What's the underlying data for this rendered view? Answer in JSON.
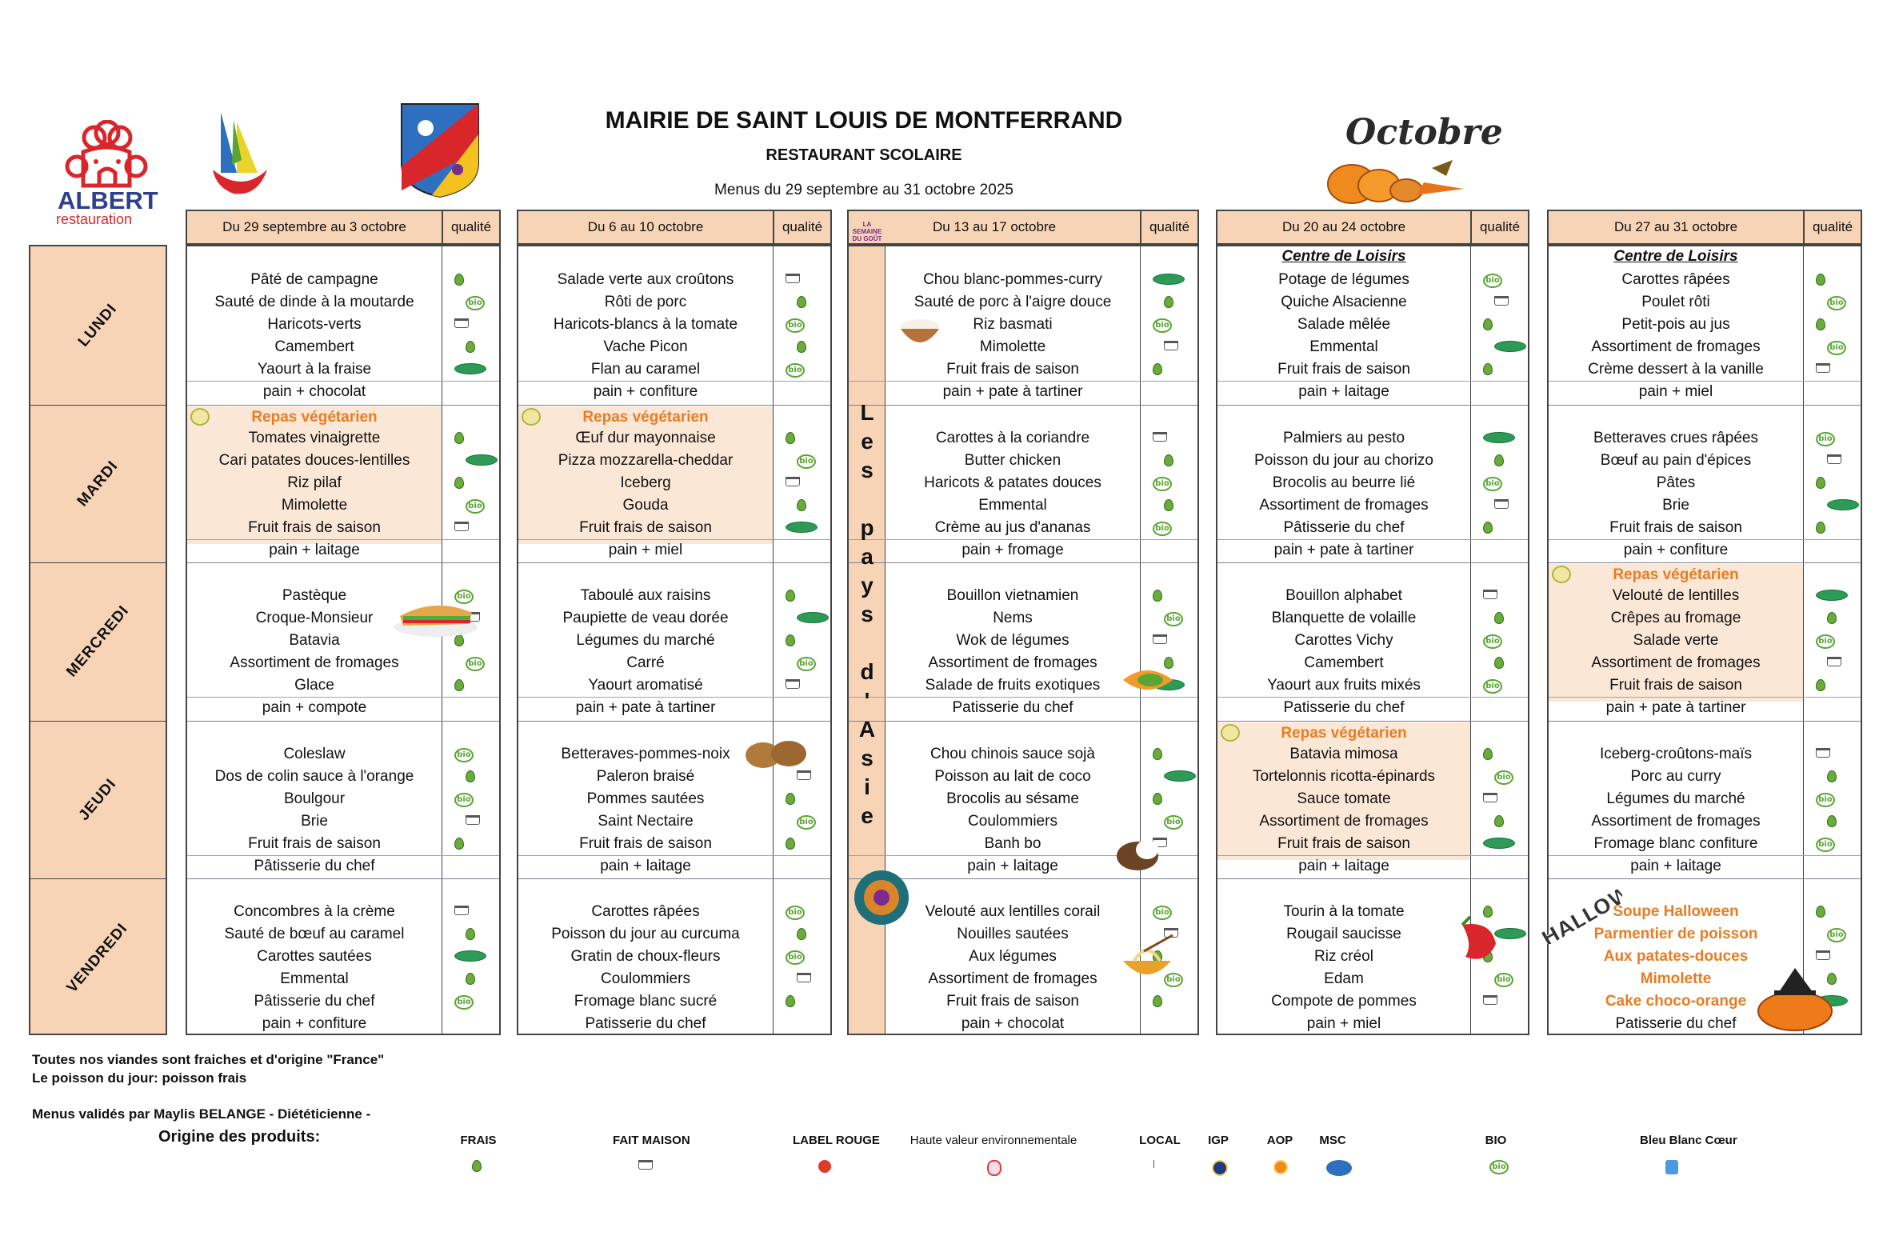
{
  "header": {
    "brand_name": "ALBERT",
    "brand_tagline": "restauration",
    "title": "MAIRIE DE SAINT LOUIS DE MONTFERRAND",
    "subtitle": "RESTAURANT SCOLAIRE",
    "period": "Menus du 29 septembre au 31 octobre 2025",
    "month_art": "Octobre"
  },
  "days": [
    "LUNDI",
    "MARDI",
    "MERCREDI",
    "JEUDI",
    "VENDREDI"
  ],
  "quality_label": "qualité",
  "weeks": [
    {
      "label": "Du 29 septembre au 3 octobre",
      "days": [
        {
          "items": [
            "Pâté de campagne",
            "Sauté de dinde à la moutarde",
            "Haricots-verts",
            "Camembert",
            "Yaourt à la fraise",
            "pain + chocolat"
          ]
        },
        {
          "special": "Repas végétarien",
          "items": [
            "Tomates vinaigrette",
            "Cari patates douces-lentilles",
            "Riz pilaf",
            "Mimolette",
            "Fruit frais de saison",
            "pain + laitage"
          ]
        },
        {
          "items": [
            "Pastèque",
            "Croque-Monsieur",
            "Batavia",
            "Assortiment de fromages",
            "Glace",
            "pain + compote"
          ]
        },
        {
          "items": [
            "Coleslaw",
            "Dos de colin sauce à l'orange",
            "Boulgour",
            "Brie",
            "Fruit frais de saison",
            "Pâtisserie du chef"
          ]
        },
        {
          "items": [
            "Concombres à la crème",
            "Sauté de bœuf au caramel",
            "Carottes sautées",
            "Emmental",
            "Pâtisserie du chef",
            "pain + confiture"
          ]
        }
      ]
    },
    {
      "label": "Du 6 au 10 octobre",
      "days": [
        {
          "items": [
            "Salade verte aux croûtons",
            "Rôti de porc",
            "Haricots-blancs à la tomate",
            "Vache Picon",
            "Flan au caramel",
            "pain + confiture"
          ]
        },
        {
          "special": "Repas végétarien",
          "items": [
            "Œuf dur mayonnaise",
            "Pizza mozzarella-cheddar",
            "Iceberg",
            "Gouda",
            "Fruit frais de saison",
            "pain + miel"
          ]
        },
        {
          "items": [
            "Taboulé aux raisins",
            "Paupiette de veau dorée",
            "Légumes du marché",
            "Carré",
            "Yaourt aromatisé",
            "pain + pate à tartiner"
          ]
        },
        {
          "items": [
            "Betteraves-pommes-noix",
            "Paleron braisé",
            "Pommes sautées",
            "Saint Nectaire",
            "Fruit frais de saison",
            "pain + laitage"
          ]
        },
        {
          "items": [
            "Carottes râpées",
            "Poisson du jour au curcuma",
            "Gratin de choux-fleurs",
            "Coulommiers",
            "Fromage blanc sucré",
            "Patisserie du chef"
          ]
        }
      ]
    },
    {
      "label": "Du 13 au 17 octobre",
      "badge": "LA SEMAINE DU GOÛT",
      "theme": "Les pays d'Asie",
      "days": [
        {
          "items": [
            "Chou blanc-pommes-curry",
            "Sauté de porc à l'aigre douce",
            "Riz basmati",
            "Mimolette",
            "Fruit frais de saison",
            "pain + pate à tartiner"
          ]
        },
        {
          "items": [
            "Carottes à la coriandre",
            "Butter chicken",
            "Haricots & patates douces",
            "Emmental",
            "Crème au jus d'ananas",
            "pain + fromage"
          ]
        },
        {
          "items": [
            "Bouillon vietnamien",
            "Nems",
            "Wok de légumes",
            "Assortiment de fromages",
            "Salade de fruits exotiques",
            "Patisserie du chef"
          ]
        },
        {
          "items": [
            "Chou chinois sauce sojà",
            "Poisson au lait de coco",
            "Brocolis au sésame",
            "Coulommiers",
            "Banh bo",
            "pain + laitage"
          ]
        },
        {
          "items": [
            "Velouté aux lentilles corail",
            "Nouilles sautées",
            "Aux légumes",
            "Assortiment de fromages",
            "Fruit frais de saison",
            "pain + chocolat"
          ]
        }
      ]
    },
    {
      "label": "Du 20 au 24 octobre",
      "days": [
        {
          "header": "Centre de Loisirs",
          "items": [
            "Potage de légumes",
            "Quiche Alsacienne",
            "Salade mêlée",
            "Emmental",
            "Fruit frais de saison",
            "pain + laitage"
          ]
        },
        {
          "items": [
            "Palmiers au pesto",
            "Poisson du jour au chorizo",
            "Brocolis au beurre lié",
            "Assortiment de fromages",
            "Pâtisserie du chef",
            "pain + pate à tartiner"
          ]
        },
        {
          "items": [
            "Bouillon alphabet",
            "Blanquette de volaille",
            "Carottes Vichy",
            "Camembert",
            "Yaourt aux fruits mixés",
            "Patisserie du chef"
          ]
        },
        {
          "special": "Repas végétarien",
          "items": [
            "Batavia mimosa",
            "Tortelonnis ricotta-épinards",
            "Sauce tomate",
            "Assortiment de fromages",
            "Fruit frais de saison",
            "pain + laitage"
          ]
        },
        {
          "items": [
            "Tourin à la tomate",
            "Rougail saucisse",
            "Riz créol",
            "Edam",
            "Compote de pommes",
            "pain + miel"
          ]
        }
      ]
    },
    {
      "label": "Du 27 au 31 octobre",
      "days": [
        {
          "header": "Centre de Loisirs",
          "items": [
            "Carottes râpées",
            "Poulet rôti",
            "Petit-pois au jus",
            "Assortiment de fromages",
            "Crème dessert à la vanille",
            "pain + miel"
          ]
        },
        {
          "items": [
            "Betteraves crues râpées",
            "Bœuf au pain d'épices",
            "Pâtes",
            "Brie",
            "Fruit frais de saison",
            "pain + confiture"
          ]
        },
        {
          "special": "Repas végétarien",
          "items": [
            "Velouté de lentilles",
            "Crêpes au fromage",
            "Salade verte",
            "Assortiment de fromages",
            "Fruit frais de saison",
            "pain + pate à tartiner"
          ]
        },
        {
          "items": [
            "Iceberg-croûtons-maïs",
            "Porc au curry",
            "Légumes du marché",
            "Assortiment de fromages",
            "Fromage blanc confiture",
            "pain + laitage"
          ]
        },
        {
          "items": [
            "Soupe Halloween",
            "Parmentier de poisson",
            "Aux patates-douces",
            "Mimolette",
            "Cake choco-orange",
            "Patisserie du chef"
          ],
          "highlight_count": 5,
          "highlight_color": "#e97c22"
        }
      ]
    }
  ],
  "footer": {
    "note1": "Toutes nos viandes sont fraiches et d'origine \"France\"",
    "note2": "Le poisson du jour: poisson frais",
    "validated": "Menus validés  par Maylis BELANGE - Diététicienne -",
    "legend_title": "Origine des produits:",
    "legend": [
      "FRAIS",
      "FAIT MAISON",
      "LABEL ROUGE",
      "Haute valeur environnementale",
      "LOCAL",
      "IGP",
      "AOP",
      "MSC",
      "BIO",
      "Bleu Blanc Cœur"
    ]
  },
  "icons": [
    "chef-logo",
    "sail-logo",
    "coat-of-arms",
    "pumpkin",
    "sandwich",
    "walnut",
    "coconut",
    "noodles",
    "chili",
    "halloween-pumpkin",
    "peacock",
    "rice-bowl",
    "papaya"
  ],
  "colors": {
    "header_fill": "#f7d4b6",
    "veg_band": "#fbe7d6",
    "orange_text": "#e97c22",
    "bio_green": "#5aa532",
    "brand_red": "#d9262b",
    "brand_blue": "#2e3f8f"
  }
}
